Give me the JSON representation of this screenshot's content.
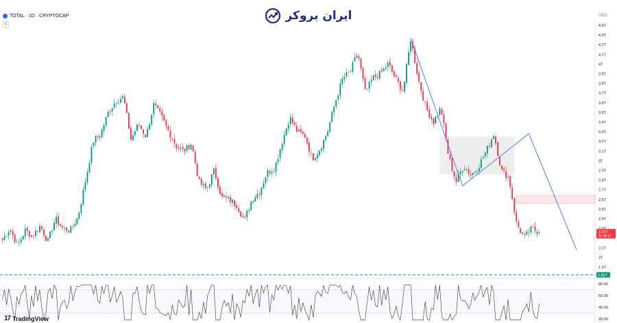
{
  "header": {
    "symbol_line": "TOTAL · 1D · CRYPTOCAP",
    "sub": "6"
  },
  "currency": "USD",
  "logo_text": "ایران بروکر",
  "branding": {
    "logo_icon": "chart-trend-icon",
    "tradingview_mark": "17",
    "tradingview_text": "TradingView"
  },
  "price_badge": {
    "value": "2.26T",
    "timer": "11:40:17",
    "color": "#f23645"
  },
  "level_badge": {
    "value": "1.82T",
    "color": "#089981"
  },
  "colors": {
    "up": "#089981",
    "down": "#f23645",
    "trend": "#4a7ef0",
    "rsi": "#333333"
  },
  "chart_data": [
    {
      "type": "candlestick",
      "y_ticks": [
        "4.4T",
        "4.3T",
        "4.2T",
        "4.1T",
        "4T",
        "3.9T",
        "3.8T",
        "3.7T",
        "3.6T",
        "3.5T",
        "3.4T",
        "3.3T",
        "3.2T",
        "3.1T",
        "3T",
        "2.9T",
        "2.8T",
        "2.7T",
        "2.6T",
        "2.5T",
        "2.4T",
        "2.3T",
        "2.1T",
        "2T",
        "1.9T"
      ],
      "ylim": [
        1.8,
        4.5
      ],
      "close_path": [
        2.18,
        2.3,
        2.12,
        2.28,
        2.22,
        2.33,
        2.16,
        2.4,
        2.3,
        2.28,
        2.42,
        2.8,
        3.2,
        3.28,
        3.5,
        3.62,
        3.66,
        3.22,
        3.38,
        3.25,
        3.58,
        3.46,
        3.3,
        3.15,
        3.1,
        3.18,
        2.78,
        2.7,
        2.9,
        2.62,
        2.6,
        2.54,
        2.38,
        2.6,
        2.68,
        2.88,
        2.92,
        3.2,
        3.45,
        3.3,
        3.26,
        3.02,
        3.12,
        3.3,
        3.6,
        3.85,
        3.92,
        4.12,
        3.7,
        3.86,
        3.9,
        4.0,
        3.85,
        3.72,
        4.26,
        3.85,
        3.55,
        3.4,
        3.55,
        3.05,
        2.78,
        2.95,
        2.85,
        2.95,
        3.1,
        3.28,
        2.9,
        2.82,
        2.35,
        2.2,
        2.3,
        2.26
      ],
      "n_candles": 260,
      "last_price": 2.26,
      "resistance_zone": [
        2.56,
        2.64
      ],
      "consolidation_box": [
        2.86,
        3.25
      ],
      "horizontal_level": 1.82,
      "trend_lines": [
        [
          4.27,
          2.74,
          3.28
        ],
        [
          3.28,
          2.08
        ]
      ]
    },
    {
      "type": "line",
      "name": "RSI",
      "y_ticks": [
        "80.00",
        "60.00",
        "40.00",
        "20.00"
      ],
      "ylim": [
        15,
        85
      ],
      "levels": [
        70,
        30
      ],
      "n_points": 260
    }
  ]
}
